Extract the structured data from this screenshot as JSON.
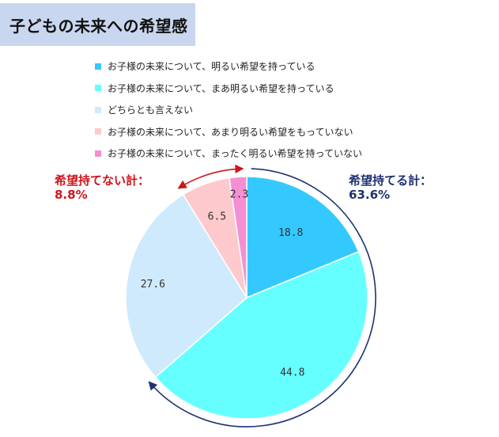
{
  "title": "子どもの未来への希望感",
  "chart_data": {
    "type": "pie",
    "title": "子どもの未来への希望感",
    "series": [
      {
        "name": "お子様の未来について、明るい希望を持っている",
        "value": 18.8,
        "label": "18.8",
        "color": "#33c9ff"
      },
      {
        "name": "お子様の未来について、まあ明るい希望を持っている",
        "value": 44.8,
        "label": "44.8",
        "color": "#66ffff"
      },
      {
        "name": "どちらとも言えない",
        "value": 27.6,
        "label": "27.6",
        "color": "#cfeafd"
      },
      {
        "name": "お子様の未来について、あまり明るい希望をもっていない",
        "value": 6.5,
        "label": "6.5",
        "color": "#fdc9cc"
      },
      {
        "name": "お子様の未来について、まったく明るい希望を持っていない",
        "value": 2.3,
        "label": "2.3",
        "color": "#f58fd3"
      }
    ],
    "legend_position": "top",
    "group_labels": {
      "positive": {
        "line1": "希望持てる計：",
        "line2": "63.6%",
        "color": "#1e3272"
      },
      "negative": {
        "line1": "希望持てない計：",
        "line2": "8.8%",
        "color": "#d0141b"
      }
    }
  }
}
